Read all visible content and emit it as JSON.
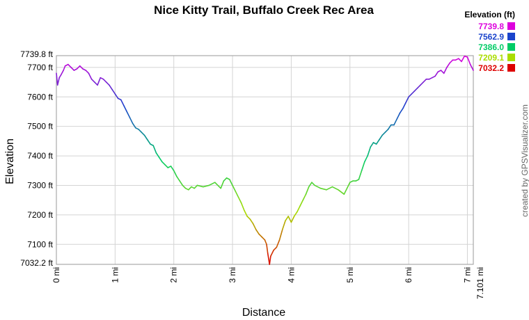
{
  "chart_data": {
    "type": "line",
    "title": "Nice Kitty Trail, Buffalo Creek Rec Area",
    "xlabel": "Distance",
    "ylabel": "Elevation",
    "xlim": [
      0,
      7.101
    ],
    "ylim": [
      7032.2,
      7739.8
    ],
    "x_ticks": [
      {
        "value": 0,
        "label": "0 mi"
      },
      {
        "value": 1,
        "label": "1 mi"
      },
      {
        "value": 2,
        "label": "2 mi"
      },
      {
        "value": 3,
        "label": "3 mi"
      },
      {
        "value": 4,
        "label": "4 mi"
      },
      {
        "value": 5,
        "label": "5 mi"
      },
      {
        "value": 6,
        "label": "6 mi"
      },
      {
        "value": 7,
        "label": "7 mi"
      },
      {
        "value": 7.101,
        "label": "7.101 mi"
      }
    ],
    "y_ticks": [
      {
        "value": 7032.2,
        "label": "7032.2 ft"
      },
      {
        "value": 7100,
        "label": "7100 ft"
      },
      {
        "value": 7200,
        "label": "7200 ft"
      },
      {
        "value": 7300,
        "label": "7300 ft"
      },
      {
        "value": 7400,
        "label": "7400 ft"
      },
      {
        "value": 7500,
        "label": "7500 ft"
      },
      {
        "value": 7600,
        "label": "7600 ft"
      },
      {
        "value": 7700,
        "label": "7700 ft"
      },
      {
        "value": 7739.8,
        "label": "7739.8 ft"
      }
    ],
    "grid": true,
    "legend_placement": "top-right",
    "legend": {
      "title": "Elevation (ft)",
      "items": [
        {
          "label": "7739.8",
          "color": "#dd00dd"
        },
        {
          "label": "7562.9",
          "color": "#1a44cc"
        },
        {
          "label": "7386.0",
          "color": "#00cc66"
        },
        {
          "label": "7209.1",
          "color": "#aadd00"
        },
        {
          "label": "7032.2",
          "color": "#dd0000"
        }
      ]
    },
    "colormap": [
      "#dd0000",
      "#aadd00",
      "#00cc66",
      "#1a44cc",
      "#dd00dd"
    ],
    "series": [
      {
        "x": [
          0,
          0.02,
          0.05,
          0.08,
          0.12,
          0.15,
          0.2,
          0.25,
          0.3,
          0.35,
          0.4,
          0.45,
          0.5,
          0.55,
          0.6,
          0.65,
          0.7,
          0.75,
          0.8,
          0.85,
          0.9,
          0.95,
          1.0,
          1.05,
          1.1,
          1.15,
          1.2,
          1.25,
          1.3,
          1.35,
          1.4,
          1.45,
          1.5,
          1.55,
          1.6,
          1.65,
          1.7,
          1.75,
          1.8,
          1.85,
          1.9,
          1.95,
          2.0,
          2.05,
          2.1,
          2.15,
          2.2,
          2.25,
          2.3,
          2.35,
          2.4,
          2.5,
          2.6,
          2.7,
          2.8,
          2.85,
          2.9,
          2.95,
          3.0,
          3.05,
          3.1,
          3.15,
          3.2,
          3.25,
          3.3,
          3.35,
          3.4,
          3.45,
          3.5,
          3.55,
          3.58,
          3.6,
          3.63,
          3.65,
          3.7,
          3.75,
          3.8,
          3.85,
          3.9,
          3.95,
          4.0,
          4.05,
          4.1,
          4.15,
          4.2,
          4.25,
          4.3,
          4.35,
          4.4,
          4.5,
          4.6,
          4.7,
          4.8,
          4.9,
          5.0,
          5.05,
          5.1,
          5.15,
          5.2,
          5.25,
          5.3,
          5.35,
          5.4,
          5.45,
          5.5,
          5.55,
          5.6,
          5.65,
          5.7,
          5.75,
          5.8,
          5.85,
          5.9,
          5.95,
          6.0,
          6.05,
          6.1,
          6.15,
          6.2,
          6.25,
          6.3,
          6.35,
          6.4,
          6.45,
          6.5,
          6.55,
          6.6,
          6.65,
          6.7,
          6.75,
          6.8,
          6.85,
          6.9,
          6.95,
          7.0,
          7.05,
          7.101
        ],
        "y": [
          7680,
          7640,
          7665,
          7675,
          7690,
          7705,
          7710,
          7700,
          7690,
          7695,
          7705,
          7695,
          7690,
          7680,
          7660,
          7650,
          7640,
          7665,
          7660,
          7650,
          7640,
          7625,
          7610,
          7595,
          7590,
          7570,
          7550,
          7530,
          7510,
          7495,
          7490,
          7480,
          7470,
          7455,
          7440,
          7435,
          7410,
          7395,
          7380,
          7370,
          7360,
          7365,
          7350,
          7330,
          7315,
          7300,
          7290,
          7285,
          7295,
          7290,
          7300,
          7295,
          7300,
          7310,
          7290,
          7315,
          7325,
          7320,
          7300,
          7280,
          7260,
          7240,
          7215,
          7195,
          7185,
          7170,
          7150,
          7135,
          7125,
          7115,
          7100,
          7070,
          7032,
          7060,
          7080,
          7090,
          7115,
          7150,
          7180,
          7195,
          7175,
          7195,
          7210,
          7230,
          7250,
          7270,
          7295,
          7310,
          7300,
          7290,
          7285,
          7295,
          7285,
          7270,
          7310,
          7315,
          7315,
          7320,
          7350,
          7380,
          7400,
          7430,
          7445,
          7440,
          7455,
          7470,
          7480,
          7490,
          7505,
          7505,
          7525,
          7545,
          7560,
          7580,
          7600,
          7610,
          7620,
          7630,
          7640,
          7650,
          7660,
          7660,
          7665,
          7670,
          7685,
          7690,
          7680,
          7700,
          7715,
          7725,
          7725,
          7730,
          7720,
          7738,
          7735,
          7710,
          7690
        ]
      }
    ]
  },
  "credit": "created by GPSVisualizer.com"
}
